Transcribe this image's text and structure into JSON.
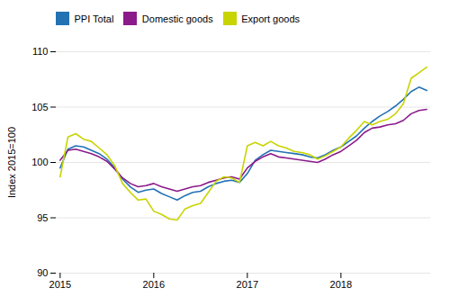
{
  "chart_data": {
    "type": "line",
    "ylabel": "Index 2015=100",
    "categories": [
      "2015",
      null,
      null,
      null,
      null,
      null,
      null,
      null,
      null,
      null,
      null,
      null,
      "2016",
      null,
      null,
      null,
      null,
      null,
      null,
      null,
      null,
      null,
      null,
      null,
      "2017",
      null,
      null,
      null,
      null,
      null,
      null,
      null,
      null,
      null,
      null,
      null,
      "2018",
      null,
      null,
      null,
      null,
      null,
      null,
      null,
      null,
      null,
      null,
      null
    ],
    "series": [
      {
        "name": "PPI Total",
        "color": "#2272B4",
        "values": [
          99.5,
          101.2,
          101.5,
          101.4,
          101.1,
          100.8,
          100.3,
          99.5,
          98.5,
          97.8,
          97.3,
          97.5,
          97.6,
          97.2,
          96.9,
          96.6,
          97.0,
          97.3,
          97.4,
          97.8,
          98.1,
          98.3,
          98.4,
          98.2,
          99.0,
          100.2,
          100.7,
          101.1,
          101.0,
          100.9,
          100.8,
          100.7,
          100.5,
          100.4,
          100.7,
          101.1,
          101.4,
          101.9,
          102.4,
          103.1,
          103.7,
          104.2,
          104.6,
          105.1,
          105.7,
          106.4,
          106.8,
          106.5
        ]
      },
      {
        "name": "Domestic goods",
        "color": "#8B1A8A",
        "values": [
          100.2,
          101.1,
          101.2,
          101.0,
          100.8,
          100.5,
          100.1,
          99.4,
          98.6,
          98.1,
          97.8,
          97.9,
          98.1,
          97.8,
          97.6,
          97.4,
          97.6,
          97.8,
          97.9,
          98.2,
          98.4,
          98.6,
          98.7,
          98.5,
          99.5,
          100.1,
          100.5,
          100.8,
          100.5,
          100.4,
          100.3,
          100.2,
          100.1,
          100.0,
          100.3,
          100.7,
          101.0,
          101.5,
          102.0,
          102.7,
          103.1,
          103.2,
          103.4,
          103.5,
          103.8,
          104.4,
          104.7,
          104.8
        ]
      },
      {
        "name": "Export goods",
        "color": "#C8D400",
        "values": [
          98.7,
          102.3,
          102.6,
          102.1,
          101.9,
          101.3,
          100.7,
          99.7,
          98.1,
          97.3,
          96.6,
          96.7,
          95.6,
          95.3,
          94.9,
          94.8,
          95.8,
          96.1,
          96.3,
          97.3,
          98.3,
          98.7,
          98.6,
          98.2,
          101.5,
          101.8,
          101.5,
          101.9,
          101.5,
          101.3,
          101.0,
          100.9,
          100.7,
          100.3,
          100.6,
          101.0,
          101.4,
          102.2,
          102.9,
          103.7,
          103.4,
          103.7,
          103.9,
          104.4,
          105.3,
          107.6,
          108.1,
          108.6
        ]
      }
    ],
    "ylim": [
      90,
      110
    ],
    "yticks": [
      90,
      95,
      100,
      105,
      110
    ],
    "grid": true,
    "legend": "upper left"
  }
}
